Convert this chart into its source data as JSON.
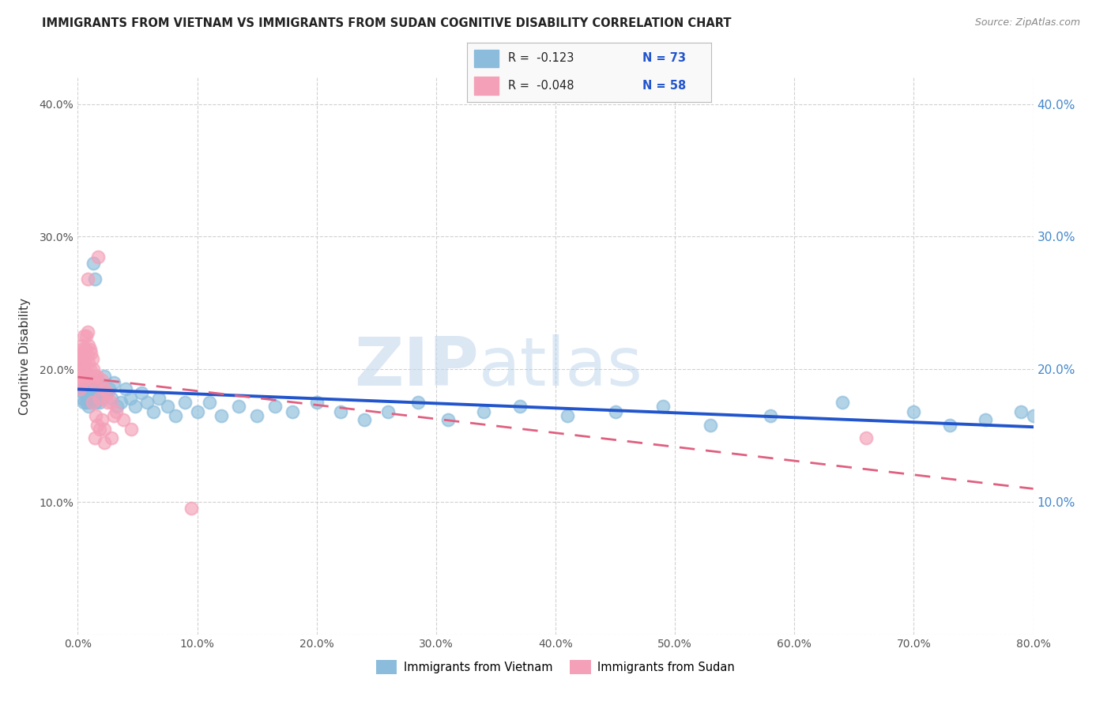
{
  "title": "IMMIGRANTS FROM VIETNAM VS IMMIGRANTS FROM SUDAN COGNITIVE DISABILITY CORRELATION CHART",
  "source": "Source: ZipAtlas.com",
  "ylabel": "Cognitive Disability",
  "xlim": [
    0,
    0.8
  ],
  "ylim": [
    0,
    0.42
  ],
  "xticks": [
    0.0,
    0.1,
    0.2,
    0.3,
    0.4,
    0.5,
    0.6,
    0.7,
    0.8
  ],
  "xticklabels": [
    "0.0%",
    "10.0%",
    "20.0%",
    "30.0%",
    "40.0%",
    "50.0%",
    "60.0%",
    "70.0%",
    "80.0%"
  ],
  "yticks": [
    0.0,
    0.1,
    0.2,
    0.3,
    0.4
  ],
  "yticklabels": [
    "",
    "10.0%",
    "20.0%",
    "30.0%",
    "40.0%"
  ],
  "right_yticks": [
    0.1,
    0.2,
    0.3,
    0.4
  ],
  "right_yticklabels": [
    "10.0%",
    "20.0%",
    "30.0%",
    "40.0%"
  ],
  "vietnam_color": "#8bbcdb",
  "sudan_color": "#f4a0b8",
  "vietnam_line_color": "#2255cc",
  "sudan_line_color": "#e06080",
  "background_color": "#ffffff",
  "grid_color": "#cccccc",
  "legend_R_vietnam": "R =  -0.123",
  "legend_N_vietnam": "N = 73",
  "legend_R_sudan": "R =  -0.048",
  "legend_N_sudan": "N = 58",
  "watermark_zip": "ZIP",
  "watermark_atlas": "atlas",
  "vietnam_x": [
    0.001,
    0.002,
    0.003,
    0.003,
    0.004,
    0.004,
    0.005,
    0.005,
    0.005,
    0.006,
    0.006,
    0.007,
    0.007,
    0.008,
    0.008,
    0.009,
    0.009,
    0.01,
    0.01,
    0.01,
    0.011,
    0.012,
    0.013,
    0.014,
    0.015,
    0.016,
    0.017,
    0.018,
    0.019,
    0.02,
    0.022,
    0.024,
    0.026,
    0.028,
    0.03,
    0.033,
    0.036,
    0.04,
    0.044,
    0.048,
    0.053,
    0.058,
    0.063,
    0.068,
    0.075,
    0.082,
    0.09,
    0.1,
    0.11,
    0.12,
    0.135,
    0.15,
    0.165,
    0.18,
    0.2,
    0.22,
    0.24,
    0.26,
    0.285,
    0.31,
    0.34,
    0.37,
    0.41,
    0.45,
    0.49,
    0.53,
    0.58,
    0.64,
    0.7,
    0.73,
    0.76,
    0.79,
    0.8
  ],
  "vietnam_y": [
    0.195,
    0.19,
    0.185,
    0.2,
    0.192,
    0.178,
    0.188,
    0.182,
    0.175,
    0.195,
    0.185,
    0.192,
    0.175,
    0.188,
    0.178,
    0.185,
    0.172,
    0.195,
    0.182,
    0.175,
    0.19,
    0.185,
    0.28,
    0.268,
    0.175,
    0.192,
    0.182,
    0.175,
    0.188,
    0.178,
    0.195,
    0.182,
    0.185,
    0.178,
    0.19,
    0.172,
    0.175,
    0.185,
    0.178,
    0.172,
    0.182,
    0.175,
    0.168,
    0.178,
    0.172,
    0.165,
    0.175,
    0.168,
    0.175,
    0.165,
    0.172,
    0.165,
    0.172,
    0.168,
    0.175,
    0.168,
    0.162,
    0.168,
    0.175,
    0.162,
    0.168,
    0.172,
    0.165,
    0.168,
    0.172,
    0.158,
    0.165,
    0.175,
    0.168,
    0.158,
    0.162,
    0.168,
    0.165
  ],
  "sudan_x": [
    0.001,
    0.001,
    0.002,
    0.002,
    0.002,
    0.003,
    0.003,
    0.003,
    0.003,
    0.004,
    0.004,
    0.004,
    0.005,
    0.005,
    0.005,
    0.005,
    0.006,
    0.006,
    0.006,
    0.007,
    0.007,
    0.008,
    0.008,
    0.008,
    0.009,
    0.009,
    0.01,
    0.01,
    0.011,
    0.011,
    0.012,
    0.012,
    0.013,
    0.014,
    0.015,
    0.016,
    0.017,
    0.018,
    0.02,
    0.022,
    0.025,
    0.028,
    0.032,
    0.038,
    0.045,
    0.025,
    0.03,
    0.012,
    0.018,
    0.015,
    0.02,
    0.016,
    0.022,
    0.028,
    0.014,
    0.022,
    0.66,
    0.095
  ],
  "sudan_y": [
    0.205,
    0.195,
    0.21,
    0.195,
    0.185,
    0.215,
    0.205,
    0.198,
    0.188,
    0.218,
    0.21,
    0.195,
    0.225,
    0.21,
    0.2,
    0.192,
    0.215,
    0.205,
    0.195,
    0.225,
    0.215,
    0.228,
    0.268,
    0.21,
    0.218,
    0.205,
    0.215,
    0.2,
    0.212,
    0.195,
    0.208,
    0.192,
    0.2,
    0.195,
    0.188,
    0.195,
    0.285,
    0.178,
    0.192,
    0.185,
    0.182,
    0.175,
    0.168,
    0.162,
    0.155,
    0.175,
    0.165,
    0.175,
    0.155,
    0.165,
    0.162,
    0.158,
    0.155,
    0.148,
    0.148,
    0.145,
    0.148,
    0.095
  ]
}
